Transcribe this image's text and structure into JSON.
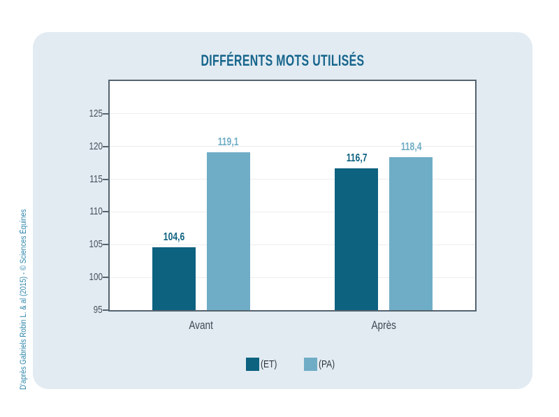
{
  "page": {
    "credit": "D'après Gabriels Robin L. & al (2015) - © Sciences Équines"
  },
  "colors": {
    "card_bg": "#e2ebf2",
    "title": "#16658c",
    "axis": "#55636e",
    "grid": "#ededed",
    "credit": "#2e86ac",
    "series_dark": "#0d6280",
    "series_light": "#6fadc6"
  },
  "chart_data": {
    "type": "bar",
    "title": "DIFFÉRENTS MOTS UTILISÉS",
    "categories": [
      "Avant",
      "Après"
    ],
    "series": [
      {
        "name": "(ET)",
        "color": "#0d6280",
        "label_color": "#0d6280",
        "values": [
          104.6,
          116.7
        ],
        "value_labels": [
          "104,6",
          "116,7"
        ]
      },
      {
        "name": "(PA)",
        "color": "#6fadc6",
        "label_color": "#6fadc6",
        "values": [
          119.1,
          118.4
        ],
        "value_labels": [
          "119,1",
          "118,4"
        ]
      }
    ],
    "xlabel": "",
    "ylabel": "",
    "ylim": [
      95,
      130
    ],
    "yticks": [
      95,
      100,
      105,
      110,
      115,
      120,
      125
    ],
    "grid": true,
    "legend_position": "bottom"
  }
}
